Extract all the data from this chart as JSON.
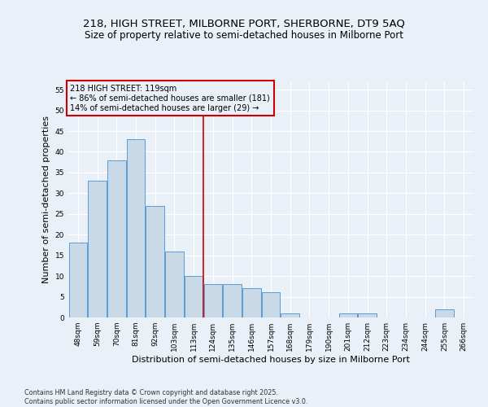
{
  "title_line1": "218, HIGH STREET, MILBORNE PORT, SHERBORNE, DT9 5AQ",
  "title_line2": "Size of property relative to semi-detached houses in Milborne Port",
  "xlabel": "Distribution of semi-detached houses by size in Milborne Port",
  "ylabel": "Number of semi-detached properties",
  "categories": [
    "48sqm",
    "59sqm",
    "70sqm",
    "81sqm",
    "92sqm",
    "103sqm",
    "113sqm",
    "124sqm",
    "135sqm",
    "146sqm",
    "157sqm",
    "168sqm",
    "179sqm",
    "190sqm",
    "201sqm",
    "212sqm",
    "223sqm",
    "234sqm",
    "244sqm",
    "255sqm",
    "266sqm"
  ],
  "values": [
    18,
    33,
    38,
    43,
    27,
    16,
    10,
    8,
    8,
    7,
    6,
    1,
    0,
    0,
    1,
    1,
    0,
    0,
    0,
    2,
    0
  ],
  "bar_color": "#c9d9e8",
  "bar_edge_color": "#5b9bd5",
  "background_color": "#eaf0f7",
  "plot_bg_color": "#eaf0f7",
  "grid_color": "#ffffff",
  "vline_color": "#cc0000",
  "annotation_box_text": "218 HIGH STREET: 119sqm\n← 86% of semi-detached houses are smaller (181)\n14% of semi-detached houses are larger (29) →",
  "annotation_box_color": "#cc0000",
  "annotation_box_bg": "#eaf0f7",
  "ylim": [
    0,
    57
  ],
  "yticks": [
    0,
    5,
    10,
    15,
    20,
    25,
    30,
    35,
    40,
    45,
    50,
    55
  ],
  "footer_text": "Contains HM Land Registry data © Crown copyright and database right 2025.\nContains public sector information licensed under the Open Government Licence v3.0.",
  "title_fontsize": 9.5,
  "subtitle_fontsize": 8.5,
  "tick_fontsize": 6.5,
  "ylabel_fontsize": 8,
  "xlabel_fontsize": 8,
  "ann_fontsize": 7,
  "footer_fontsize": 5.8
}
